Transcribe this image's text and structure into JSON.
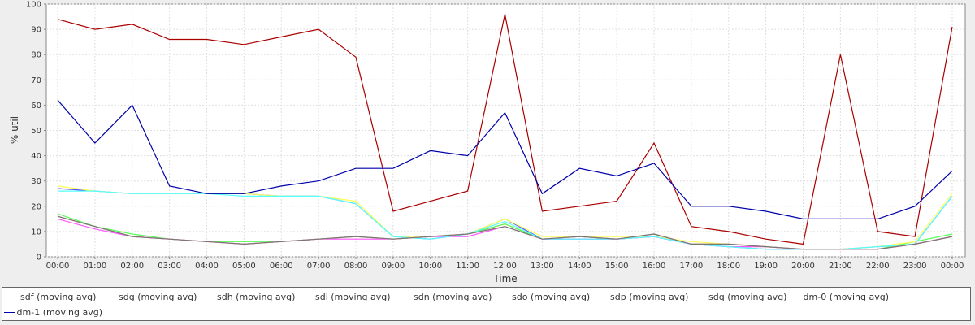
{
  "chart_data": {
    "type": "line",
    "title": "",
    "xlabel": "Time",
    "ylabel": "% util",
    "ylim": [
      0,
      100
    ],
    "xlim": [
      "00:00",
      "00:00"
    ],
    "y_ticks": [
      0,
      10,
      20,
      30,
      40,
      50,
      60,
      70,
      80,
      90,
      100
    ],
    "x_ticks": [
      "00:00",
      "01:00",
      "02:00",
      "03:00",
      "04:00",
      "05:00",
      "06:00",
      "07:00",
      "08:00",
      "09:00",
      "10:00",
      "11:00",
      "12:00",
      "13:00",
      "14:00",
      "15:00",
      "16:00",
      "17:00",
      "18:00",
      "19:00",
      "20:00",
      "21:00",
      "22:00",
      "23:00",
      "00:00"
    ],
    "grid": true,
    "legend_position": "bottom",
    "x": [
      "00:00",
      "01:00",
      "02:00",
      "03:00",
      "04:00",
      "05:00",
      "06:00",
      "07:00",
      "08:00",
      "09:00",
      "10:00",
      "11:00",
      "12:00",
      "13:00",
      "14:00",
      "15:00",
      "16:00",
      "17:00",
      "18:00",
      "19:00",
      "20:00",
      "21:00",
      "22:00",
      "23:00",
      "00:00"
    ],
    "series": [
      {
        "name": "sdf (moving avg)",
        "color": "#ff5555",
        "values": [
          16,
          12,
          8,
          7,
          6,
          5,
          6,
          7,
          8,
          7,
          8,
          9,
          13,
          7,
          8,
          7,
          9,
          5,
          5,
          4,
          3,
          3,
          3,
          5,
          8
        ]
      },
      {
        "name": "sdg (moving avg)",
        "color": "#5555ff",
        "values": [
          27,
          26,
          25,
          25,
          25,
          25,
          24,
          24,
          21,
          8,
          7,
          9,
          15,
          7,
          7,
          7,
          8,
          5,
          4,
          3,
          3,
          3,
          4,
          5,
          24
        ]
      },
      {
        "name": "sdh (moving avg)",
        "color": "#55ff55",
        "values": [
          17,
          12,
          9,
          7,
          6,
          6,
          6,
          7,
          8,
          7,
          8,
          9,
          13,
          7,
          8,
          7,
          9,
          5,
          5,
          4,
          3,
          3,
          3,
          6,
          9
        ]
      },
      {
        "name": "sdi (moving avg)",
        "color": "#ffff55",
        "values": [
          28,
          26,
          25,
          25,
          25,
          25,
          24,
          24,
          22,
          8,
          8,
          9,
          15,
          8,
          8,
          8,
          8,
          6,
          5,
          4,
          3,
          3,
          4,
          6,
          25
        ]
      },
      {
        "name": "sdn (moving avg)",
        "color": "#ff55ff",
        "values": [
          15,
          11,
          8,
          7,
          6,
          5,
          6,
          7,
          7,
          7,
          8,
          8,
          12,
          7,
          7,
          7,
          8,
          5,
          4,
          4,
          3,
          3,
          3,
          5,
          8
        ]
      },
      {
        "name": "sdo (moving avg)",
        "color": "#55ffff",
        "values": [
          26,
          26,
          25,
          25,
          25,
          24,
          24,
          24,
          21,
          8,
          7,
          9,
          14,
          7,
          7,
          7,
          8,
          5,
          4,
          3,
          3,
          3,
          4,
          5,
          24
        ]
      },
      {
        "name": "sdp (moving avg)",
        "color": "#ffaaaa",
        "values": [
          16,
          12,
          8,
          7,
          6,
          5,
          6,
          7,
          8,
          7,
          8,
          9,
          12,
          7,
          8,
          7,
          9,
          5,
          5,
          4,
          3,
          3,
          3,
          5,
          8
        ]
      },
      {
        "name": "sdq (moving avg)",
        "color": "#777777",
        "values": [
          16,
          12,
          8,
          7,
          6,
          5,
          6,
          7,
          8,
          7,
          8,
          9,
          12,
          7,
          8,
          7,
          9,
          5,
          5,
          4,
          3,
          3,
          3,
          5,
          8
        ]
      },
      {
        "name": "dm-0 (moving avg)",
        "color": "#aa0000",
        "values": [
          94,
          90,
          92,
          86,
          86,
          84,
          87,
          90,
          79,
          18,
          22,
          26,
          96,
          18,
          20,
          22,
          45,
          12,
          10,
          7,
          5,
          80,
          10,
          8,
          91
        ]
      },
      {
        "name": "dm-1 (moving avg)",
        "color": "#0000aa",
        "values": [
          62,
          45,
          60,
          28,
          25,
          25,
          28,
          30,
          35,
          35,
          42,
          40,
          57,
          25,
          35,
          32,
          37,
          20,
          20,
          18,
          15,
          15,
          15,
          20,
          34
        ]
      }
    ]
  },
  "legend": {
    "items": [
      {
        "label": "sdf (moving avg)",
        "color": "#ff5555"
      },
      {
        "label": "sdg (moving avg)",
        "color": "#5555ff"
      },
      {
        "label": "sdh (moving avg)",
        "color": "#55ff55"
      },
      {
        "label": "sdi (moving avg)",
        "color": "#ffff55"
      },
      {
        "label": "sdn (moving avg)",
        "color": "#ff55ff"
      },
      {
        "label": "sdo (moving avg)",
        "color": "#55ffff"
      },
      {
        "label": "sdp (moving avg)",
        "color": "#ffaaaa"
      },
      {
        "label": "sdq (moving avg)",
        "color": "#777777"
      },
      {
        "label": "dm-0 (moving avg)",
        "color": "#aa0000"
      },
      {
        "label": "dm-1 (moving avg)",
        "color": "#0000aa"
      }
    ]
  }
}
